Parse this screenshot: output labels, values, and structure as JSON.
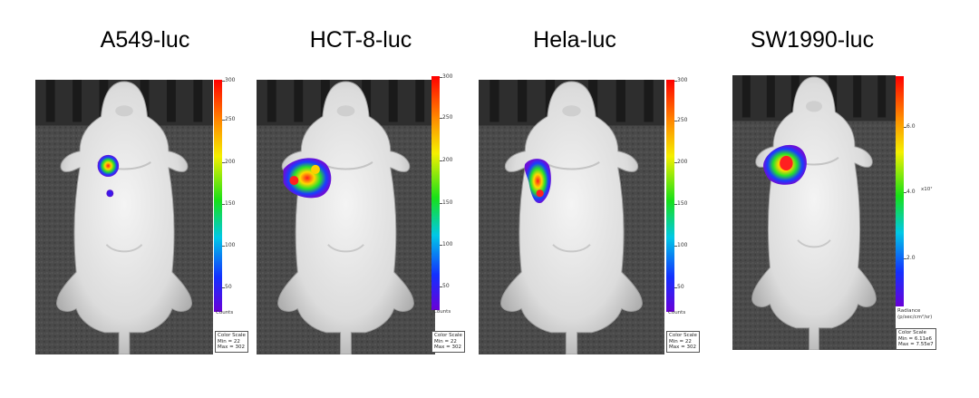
{
  "panels": [
    {
      "label": "A549-luc",
      "scale_ticks": [
        "300",
        "250",
        "200",
        "150",
        "100",
        "50"
      ],
      "scale_unit": "Counts",
      "color_scale": {
        "title": "Color Scale",
        "min": "Min = 22",
        "max": "Max = 302"
      }
    },
    {
      "label": "HCT-8-luc",
      "scale_ticks": [
        "300",
        "250",
        "200",
        "150",
        "100",
        "50"
      ],
      "scale_unit": "Counts",
      "color_scale": {
        "title": "Color Scale",
        "min": "Min = 22",
        "max": "Max = 302"
      }
    },
    {
      "label": "Hela-luc",
      "scale_ticks": [
        "300",
        "250",
        "200",
        "150",
        "100",
        "50"
      ],
      "scale_unit": "Counts",
      "color_scale": {
        "title": "Color Scale",
        "min": "Min = 22",
        "max": "Max = 302"
      }
    },
    {
      "label": "SW1990-luc",
      "scale_ticks": [
        "6.0",
        "4.0",
        "2.0"
      ],
      "scale_multiplier": "x10⁷",
      "scale_unit_lines": [
        "Radiance",
        "(p/sec/cm²/sr)"
      ],
      "color_scale": {
        "title": "Color Scale",
        "min": "Min = 6.11e6",
        "max": "Max = 7.55e7"
      }
    }
  ],
  "colors": {
    "background": "#ffffff",
    "heat_red": "#e8202a",
    "heat_yellow": "#f2e22a",
    "heat_green": "#2fd33a",
    "heat_blue": "#2433e0",
    "heat_violet": "#7a1fd1"
  }
}
